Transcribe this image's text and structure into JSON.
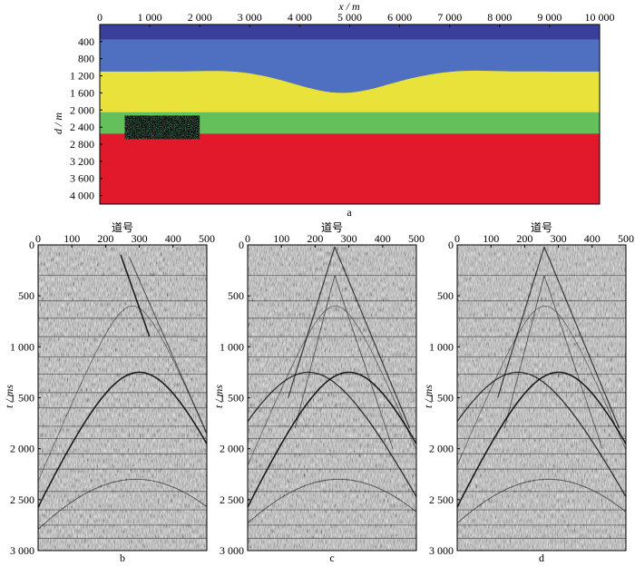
{
  "figure": {
    "panel_a": {
      "label": "a",
      "x_axis_label": "x / m",
      "y_axis_label": "d / m",
      "x_ticks": [
        {
          "value": 0,
          "label": "0"
        },
        {
          "value": 1000,
          "label": "1 000"
        },
        {
          "value": 2000,
          "label": "2 000"
        },
        {
          "value": 3000,
          "label": "3 000"
        },
        {
          "value": 4000,
          "label": "4 000"
        },
        {
          "value": 5000,
          "label": "5 000"
        },
        {
          "value": 6000,
          "label": "6 000"
        },
        {
          "value": 7000,
          "label": "7 000"
        },
        {
          "value": 8000,
          "label": "8 000"
        },
        {
          "value": 9000,
          "label": "9 000"
        },
        {
          "value": 10000,
          "label": "10 000"
        }
      ],
      "y_ticks": [
        {
          "value": 400,
          "label": "400"
        },
        {
          "value": 800,
          "label": "800"
        },
        {
          "value": 1200,
          "label": "1 200"
        },
        {
          "value": 1600,
          "label": "1 600"
        },
        {
          "value": 2000,
          "label": "2 000"
        },
        {
          "value": 2400,
          "label": "2 400"
        },
        {
          "value": 2800,
          "label": "2 800"
        },
        {
          "value": 3200,
          "label": "3 200"
        },
        {
          "value": 3600,
          "label": "3 600"
        },
        {
          "value": 4000,
          "label": "4 000"
        }
      ],
      "x_range": [
        0,
        10000
      ],
      "y_range": [
        0,
        4200
      ],
      "layers": [
        {
          "top": 0,
          "bottom": 350,
          "color": "#3b3f9c"
        },
        {
          "top": 350,
          "bottom": 1100,
          "color": "#4f6fc0"
        },
        {
          "top": 1100,
          "bottom": 2050,
          "color": "#e8e23a"
        },
        {
          "top": 2050,
          "bottom": 2550,
          "color": "#63c05a"
        },
        {
          "top": 2550,
          "bottom": 4200,
          "color": "#e1192b"
        }
      ],
      "anomaly": {
        "x_range": [
          500,
          2000
        ],
        "d_range": [
          2130,
          2680
        ],
        "color": "#111111"
      }
    },
    "gathers": [
      {
        "label": "b",
        "x_title": "道号",
        "y_title": "t / ms"
      },
      {
        "label": "c",
        "x_title": "道号",
        "y_title": "t / ms"
      },
      {
        "label": "d",
        "x_title": "道号",
        "y_title": "t / ms"
      }
    ],
    "gather_x_ticks": [
      {
        "value": 0,
        "label": "0"
      },
      {
        "value": 100,
        "label": "100"
      },
      {
        "value": 200,
        "label": "200"
      },
      {
        "value": 300,
        "label": "300"
      },
      {
        "value": 400,
        "label": "400"
      },
      {
        "value": 500,
        "label": "500"
      }
    ],
    "gather_y_ticks": [
      {
        "value": 0,
        "label": "0"
      },
      {
        "value": 500,
        "label": "500"
      },
      {
        "value": 1000,
        "label": "1 000"
      },
      {
        "value": 1500,
        "label": "1 500"
      },
      {
        "value": 2000,
        "label": "2 000"
      },
      {
        "value": 2500,
        "label": "2 500"
      },
      {
        "value": 3000,
        "label": "3 000"
      }
    ],
    "gather_x_range": [
      0,
      500
    ],
    "gather_t_range": [
      0,
      3000
    ]
  }
}
